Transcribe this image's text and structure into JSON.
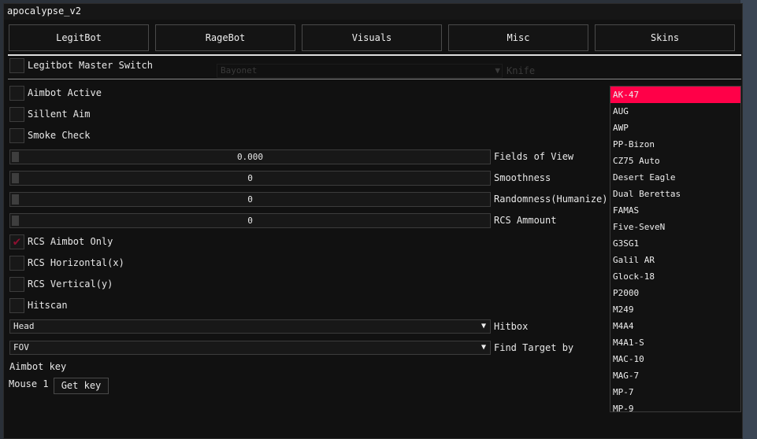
{
  "window": {
    "title": "apocalypse_v2"
  },
  "tabs": [
    "LegitBot",
    "RageBot",
    "Visuals",
    "Misc",
    "Skins"
  ],
  "master_switch": {
    "label": "Legitbot Master Switch",
    "checked": false
  },
  "background_faded": {
    "combo_value": "Bayonet",
    "combo_label": "Knife"
  },
  "checkboxes_top": [
    {
      "label": "Aimbot Active",
      "checked": false
    },
    {
      "label": "Sillent Aim",
      "checked": false
    },
    {
      "label": "Smoke Check",
      "checked": false
    }
  ],
  "sliders": [
    {
      "label": "Fields of View",
      "value": "0.000"
    },
    {
      "label": "Smoothness",
      "value": "0"
    },
    {
      "label": "Randomness(Humanize)",
      "value": "0"
    },
    {
      "label": "RCS Ammount",
      "value": "0"
    }
  ],
  "checkboxes_bottom": [
    {
      "label": "RCS Aimbot Only",
      "checked": true
    },
    {
      "label": "RCS Horizontal(x)",
      "checked": false
    },
    {
      "label": "RCS Vertical(y)",
      "checked": false
    },
    {
      "label": "Hitscan",
      "checked": false
    }
  ],
  "combos": [
    {
      "label": "Hitbox",
      "value": "Head"
    },
    {
      "label": "Find Target by",
      "value": "FOV"
    }
  ],
  "aimbot_key": {
    "label": "Aimbot key",
    "value": "Mouse 1",
    "button": "Get key"
  },
  "weapon_list": {
    "selected": "AK-47",
    "items": [
      "AK-47",
      "AUG",
      "AWP",
      "PP-Bizon",
      "CZ75 Auto",
      "Desert Eagle",
      "Dual Berettas",
      "FAMAS",
      "Five-SeveN",
      "G3SG1",
      "Galil AR",
      "Glock-18",
      "P2000",
      "M249",
      "M4A4",
      "M4A1-S",
      "MAC-10",
      "MAG-7",
      "MP-7",
      "MP-9"
    ]
  },
  "colors": {
    "accent": "#ff0048",
    "check": "#8b1030",
    "background": "#111111"
  }
}
